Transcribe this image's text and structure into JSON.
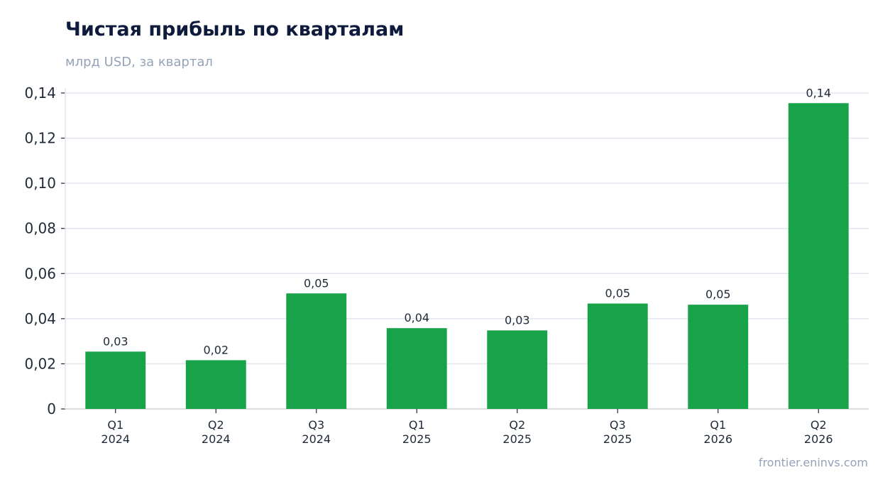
{
  "chart_data": {
    "type": "bar",
    "title": "Чистая прибыль по кварталам",
    "subtitle": "млрд USD, за квартал",
    "xlabel": "",
    "ylabel": "",
    "categories": [
      [
        "Q1",
        "2024"
      ],
      [
        "Q2",
        "2024"
      ],
      [
        "Q3",
        "2024"
      ],
      [
        "Q1",
        "2025"
      ],
      [
        "Q2",
        "2025"
      ],
      [
        "Q3",
        "2025"
      ],
      [
        "Q1",
        "2026"
      ],
      [
        "Q2",
        "2026"
      ]
    ],
    "values": [
      0.0254,
      0.0216,
      0.0512,
      0.0358,
      0.0348,
      0.0467,
      0.0462,
      0.1355
    ],
    "data_labels": [
      "0,03",
      "0,02",
      "0,05",
      "0,04",
      "0,03",
      "0,05",
      "0,05",
      "0,14"
    ],
    "ylim": [
      0,
      0.14
    ],
    "yticks": [
      0,
      0.02,
      0.04,
      0.06,
      0.08,
      0.1,
      0.12,
      0.14
    ],
    "ytick_labels": [
      "0",
      "0,02",
      "0,04",
      "0,06",
      "0,08",
      "0,10",
      "0,12",
      "0,14"
    ],
    "grid": true,
    "colors": {
      "bar": "#18a34a",
      "grid": "#e2e6ef",
      "axis": "#cbd2dd"
    }
  },
  "watermark": "frontier.eninvs.com"
}
